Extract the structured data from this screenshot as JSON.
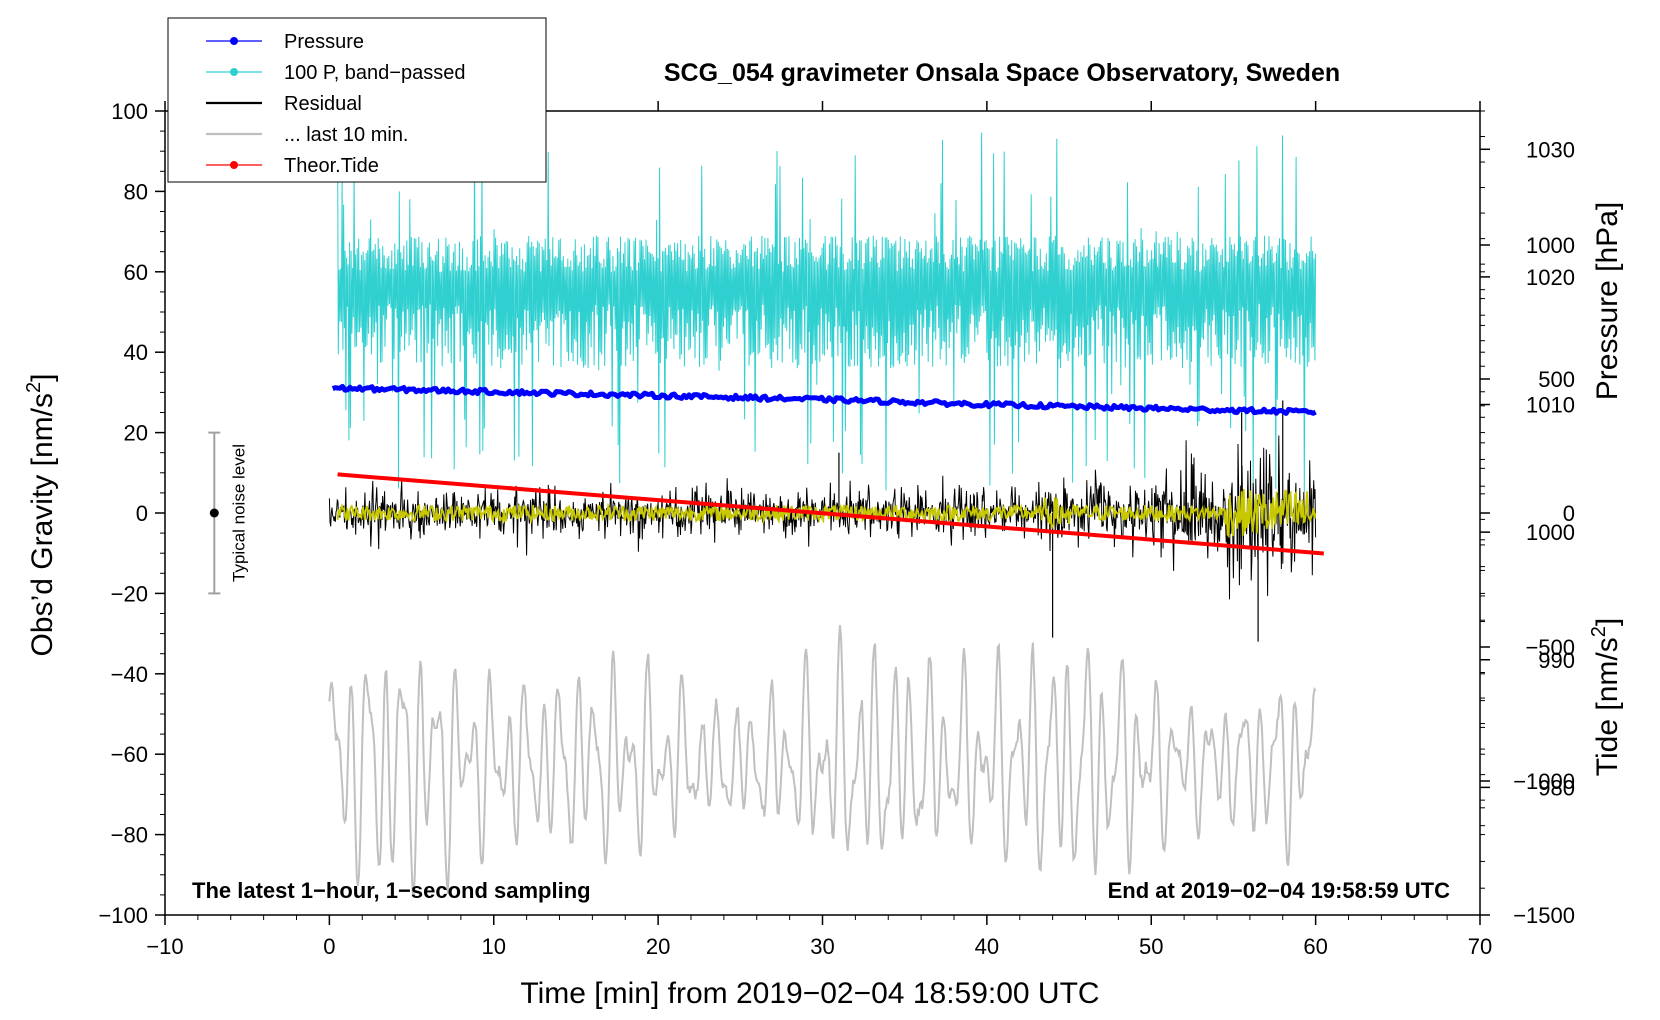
{
  "chart_data": {
    "type": "line",
    "title": "SCG_054 gravimeter Onsala Space Observatory, Sweden",
    "xlabel": "Time [min] from 2019−02−04 18:59:00 UTC",
    "ylabel_left": "Obs’d Gravity [nm/s²]",
    "ylabel_left_parts": {
      "main": "Obs’d Gravity [nm/s",
      "sup": "2",
      "end": "]"
    },
    "ylabel_right_pressure": "Pressure [hPa]",
    "ylabel_right_tide": "Tide [nm/s²]",
    "ylabel_right_tide_parts": {
      "main": "Tide [nm/s",
      "sup": "2",
      "end": "]"
    },
    "xlim": [
      -10,
      70
    ],
    "ylim": [
      -100,
      100
    ],
    "pressure_lim": [
      970,
      1033
    ],
    "tide_lim": [
      -1500,
      1500
    ],
    "xticks": [
      -10,
      0,
      10,
      20,
      30,
      40,
      50,
      60,
      70
    ],
    "xtick_labels": [
      "−10",
      "0",
      "10",
      "20",
      "30",
      "40",
      "50",
      "60",
      "70"
    ],
    "yticks": [
      -100,
      -80,
      -60,
      -40,
      -20,
      0,
      20,
      40,
      60,
      80,
      100
    ],
    "ytick_labels": [
      "−100",
      "−80",
      "−60",
      "−40",
      "−20",
      "0",
      "20",
      "40",
      "60",
      "80",
      "100"
    ],
    "pressure_ticks": [
      980,
      990,
      1000,
      1010,
      1020,
      1030
    ],
    "pressure_tick_labels": [
      "980",
      "990",
      "1000",
      "1010",
      "1020",
      "1030"
    ],
    "tide_ticks": [
      -1500,
      -1000,
      -500,
      0,
      500,
      1000
    ],
    "tide_tick_labels": [
      "−1500",
      "−1000",
      "−500",
      "0",
      "500",
      "1000"
    ],
    "legend": {
      "position": "top-left",
      "entries": [
        {
          "label": "Pressure",
          "color": "#0000ff",
          "marker": true
        },
        {
          "label": "100 P, band−passed",
          "color": "#30d0d0",
          "marker": true
        },
        {
          "label": "Residual",
          "color": "#000000",
          "marker": false
        },
        {
          "label": "... last 10 min.",
          "color": "#c0c0c0",
          "marker": false
        },
        {
          "label": "Theor.Tide",
          "color": "#ff0000",
          "marker": true
        }
      ]
    },
    "annotations": {
      "noise_label": "Typical noise level",
      "noise_bar": {
        "x": -7,
        "center": 0,
        "low": -20,
        "high": 20
      },
      "bottom_left": "The latest 1−hour, 1−second sampling",
      "bottom_right": "End at 2019−02−04 19:58:59 UTC"
    },
    "series": [
      {
        "name": "Pressure",
        "axis": "pressure",
        "color": "#0000ff",
        "x": [
          0,
          10,
          20,
          30,
          40,
          50,
          60
        ],
        "values": [
          1011.3,
          1011.0,
          1010.7,
          1010.4,
          1010.0,
          1009.7,
          1009.4
        ]
      },
      {
        "name": "100 P, band−passed",
        "axis": "gravity",
        "color": "#30d0d0",
        "x_range": [
          0.5,
          60
        ],
        "mean": 55,
        "spread_up": 30,
        "spread_down": 35
      },
      {
        "name": "Residual",
        "axis": "gravity",
        "color": "#000000",
        "x_range": [
          0,
          60
        ],
        "mean": 0,
        "amplitude": 8,
        "spikes": [
          {
            "x": 44,
            "y": -31
          },
          {
            "x": 56.5,
            "y": -32
          },
          {
            "x": 58,
            "y": 28
          },
          {
            "x": 55.5,
            "y": 25
          },
          {
            "x": 31,
            "y": 15
          }
        ]
      },
      {
        "name": "Residual (smoothed)",
        "axis": "gravity",
        "color": "#c8c800",
        "x_range": [
          0.5,
          60
        ],
        "mean": 0,
        "amplitude": 2
      },
      {
        "name": "... last 10 min.",
        "axis": "gravity",
        "color": "#c0c0c0",
        "x_range": [
          0,
          60
        ],
        "mean": -62,
        "amplitude": 22
      },
      {
        "name": "Theor.Tide",
        "axis": "tide",
        "color": "#ff0000",
        "x": [
          0.5,
          60.5
        ],
        "values": [
          144,
          -151
        ]
      }
    ]
  }
}
